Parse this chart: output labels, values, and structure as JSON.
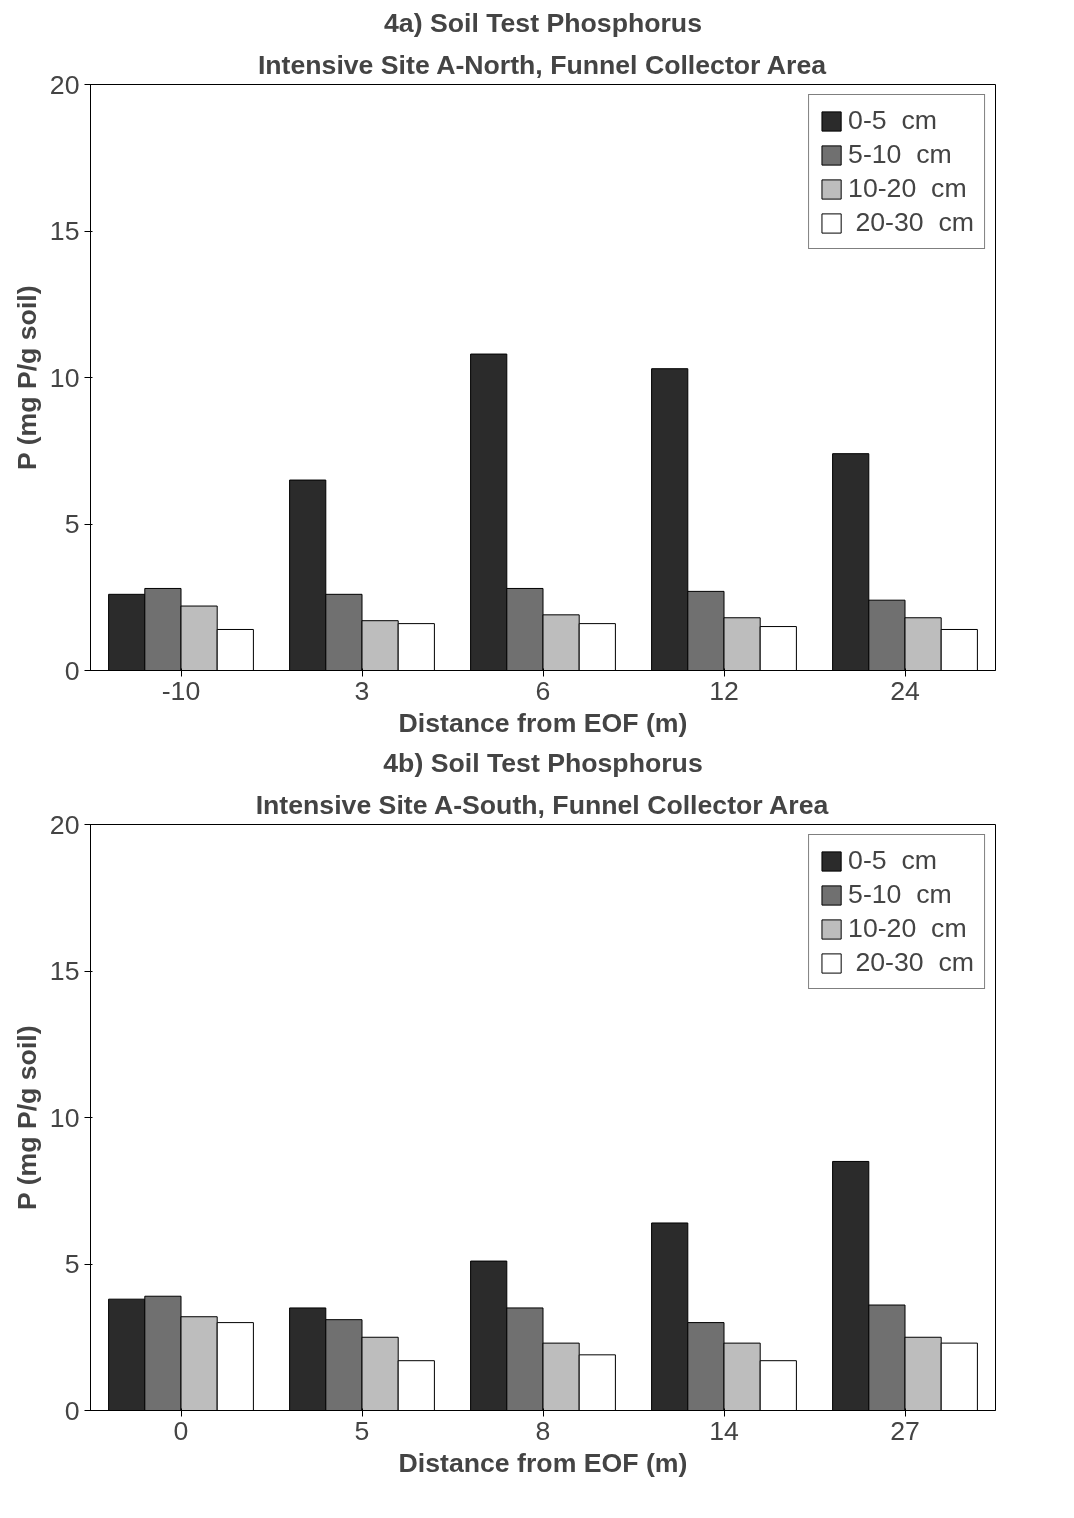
{
  "chart_data": [
    {
      "type": "bar",
      "title": "4a) Soil Test Phosphorus",
      "subtitle": "Intensive Site A-North, Funnel Collector Area",
      "xlabel": "Distance from EOF (m)",
      "ylabel": "P (mg P/g soil)",
      "categories": [
        "-10",
        "3",
        "6",
        "12",
        "24"
      ],
      "ylim": [
        0,
        20
      ],
      "yticks": [
        0,
        5,
        10,
        15,
        20
      ],
      "legend": "top right",
      "series": [
        {
          "name": "0-5  cm",
          "color": "#2b2b2b",
          "values": [
            2.6,
            6.5,
            10.8,
            10.3,
            7.4
          ]
        },
        {
          "name": "5-10  cm",
          "color": "#707070",
          "values": [
            2.8,
            2.6,
            2.8,
            2.7,
            2.4
          ]
        },
        {
          "name": "10-20  cm",
          "color": "#bdbdbd",
          "values": [
            2.2,
            1.7,
            1.9,
            1.8,
            1.8
          ]
        },
        {
          "name": " 20-30  cm",
          "color": "#ffffff",
          "values": [
            1.4,
            1.6,
            1.6,
            1.5,
            1.4
          ]
        }
      ]
    },
    {
      "type": "bar",
      "title": "4b) Soil Test Phosphorus",
      "subtitle": "Intensive Site A-South, Funnel Collector Area",
      "xlabel": "Distance from EOF (m)",
      "ylabel": "P (mg P/g soil)",
      "categories": [
        "0",
        "5",
        "8",
        "14",
        "27"
      ],
      "ylim": [
        0,
        20
      ],
      "yticks": [
        0,
        5,
        10,
        15,
        20
      ],
      "legend": "top right",
      "series": [
        {
          "name": "0-5  cm",
          "color": "#2b2b2b",
          "values": [
            3.8,
            3.5,
            5.1,
            6.4,
            8.5
          ]
        },
        {
          "name": "5-10  cm",
          "color": "#707070",
          "values": [
            3.9,
            3.1,
            3.5,
            3.0,
            3.6
          ]
        },
        {
          "name": "10-20  cm",
          "color": "#bdbdbd",
          "values": [
            3.2,
            2.5,
            2.3,
            2.3,
            2.5
          ]
        },
        {
          "name": " 20-30  cm",
          "color": "#ffffff",
          "values": [
            3.0,
            1.7,
            1.9,
            1.7,
            2.3
          ]
        }
      ]
    }
  ]
}
